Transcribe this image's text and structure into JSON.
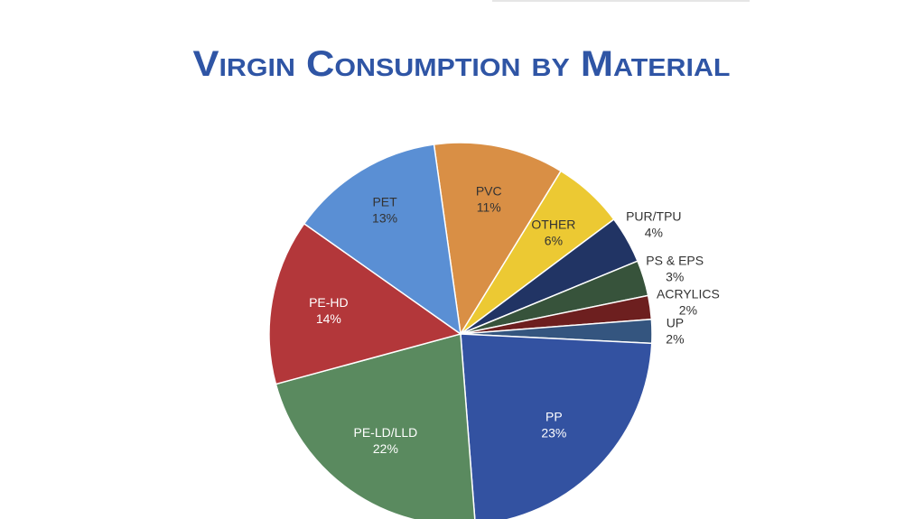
{
  "chart_data": {
    "type": "pie",
    "title": "Virgin Consumption by Material",
    "title_color": "#2f55a5",
    "unit": "%",
    "slices": [
      {
        "label": "PVC",
        "value": 11,
        "color": "#d98f45",
        "text_color": "#333333",
        "display": "11%"
      },
      {
        "label": "OTHER",
        "value": 6,
        "color": "#ecc933",
        "text_color": "#333333",
        "display": "6%"
      },
      {
        "label": "PUR/TPU",
        "value": 4,
        "color": "#213464",
        "text_color": "#333333",
        "display": "4%"
      },
      {
        "label": "PS & EPS",
        "value": 3,
        "color": "#37533b",
        "text_color": "#333333",
        "display": "3%"
      },
      {
        "label": "ACRYLICS",
        "value": 2,
        "color": "#6d1f1f",
        "text_color": "#333333",
        "display": "2%"
      },
      {
        "label": "UP",
        "value": 2,
        "color": "#34557f",
        "text_color": "#333333",
        "display": "2%"
      },
      {
        "label": "PP",
        "value": 23,
        "color": "#3352a1",
        "text_color": "#ffffff",
        "display": "23%"
      },
      {
        "label": "PE-LD/LLD",
        "value": 22,
        "color": "#5a8a5f",
        "text_color": "#ffffff",
        "display": "22%"
      },
      {
        "label": "PE-HD",
        "value": 14,
        "color": "#b3373a",
        "text_color": "#ffffff",
        "display": "14%"
      },
      {
        "label": "PET",
        "value": 13,
        "color": "#5a8fd4",
        "text_color": "#333333",
        "display": "13%"
      }
    ],
    "legend": "none"
  }
}
